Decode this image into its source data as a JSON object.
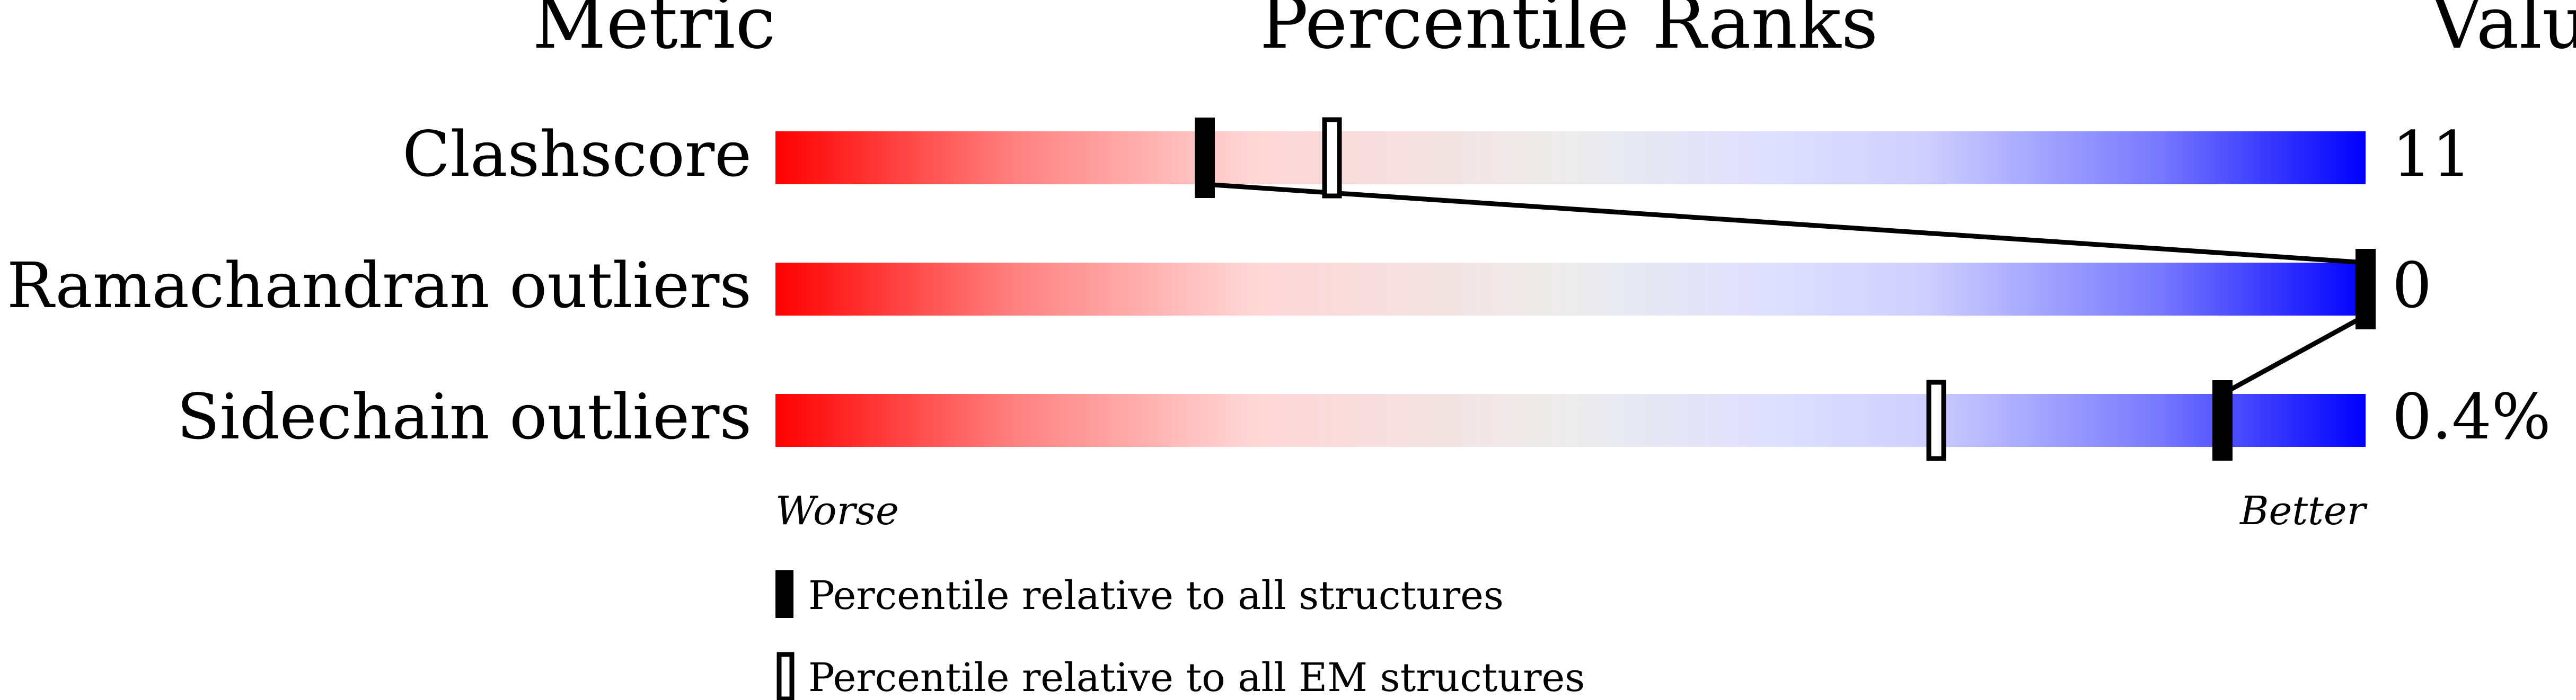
{
  "chart_data": {
    "type": "bar",
    "headers": {
      "metric": "Metric",
      "percentile": "Percentile Ranks",
      "value": "Value"
    },
    "xlim": [
      0,
      100
    ],
    "rows": [
      {
        "metric": "Clashscore",
        "value": "11",
        "percentile_all": 27,
        "percentile_em": 35
      },
      {
        "metric": "Ramachandran outliers",
        "value": "0",
        "percentile_all": 100,
        "percentile_em": null
      },
      {
        "metric": "Sidechain outliers",
        "value": "0.4%",
        "percentile_all": 91,
        "percentile_em": 73
      }
    ],
    "axis_labels": {
      "worse": "Worse",
      "better": "Better"
    },
    "legend": {
      "all": "Percentile relative to all structures",
      "em": "Percentile relative to all EM structures"
    },
    "colors": {
      "worse": "#ff0000",
      "middle": "#eeeeee",
      "better": "#0000ff",
      "marker": "#000000"
    }
  }
}
